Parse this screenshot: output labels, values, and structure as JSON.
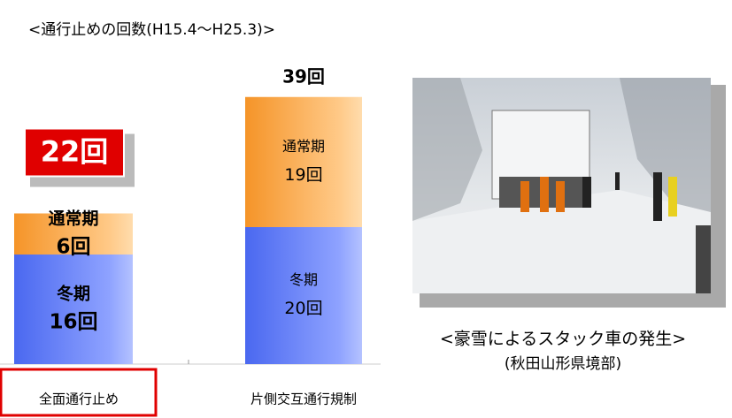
{
  "chart_data": {
    "type": "stacked-bar",
    "title": "<通行止めの回数(H15.4～H25.3)>",
    "categories": [
      "全面通行止め",
      "片側交互通行規制"
    ],
    "series": [
      {
        "name": "冬期",
        "color": "#4d6ef2",
        "values": [
          16,
          20
        ],
        "value_labels": [
          "16回",
          "20回"
        ]
      },
      {
        "name": "通常期",
        "color": "#f7a040",
        "values": [
          6,
          19
        ],
        "value_labels": [
          "6回",
          "19回"
        ]
      }
    ],
    "totals": [
      22,
      39
    ],
    "total_labels": [
      "22回",
      "39回"
    ],
    "photo_caption": [
      "<豪雪によるスタック車の発生>",
      "(秋田山形県境部)"
    ]
  }
}
